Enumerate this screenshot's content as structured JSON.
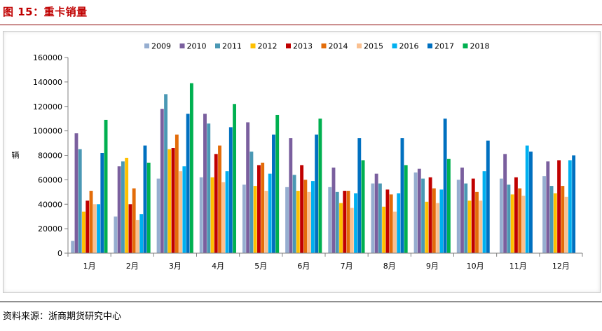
{
  "header": {
    "title": "图 15：重卡销量"
  },
  "footer": {
    "source": "资料来源：浙商期货研究中心"
  },
  "chart_data": {
    "type": "bar",
    "ylabel": "辆",
    "ylim": [
      0,
      160000
    ],
    "yticks": [
      "0",
      "20000",
      "40000",
      "60000",
      "80000",
      "100000",
      "120000",
      "140000",
      "160000"
    ],
    "legend": "top",
    "grid": false,
    "categories": [
      "1月",
      "2月",
      "3月",
      "4月",
      "5月",
      "6月",
      "7月",
      "8月",
      "9月",
      "10月",
      "11月",
      "12月"
    ],
    "series": [
      {
        "name": "2009",
        "color": "#96aed0",
        "values": [
          10000,
          30000,
          61000,
          62000,
          56000,
          54000,
          54000,
          57000,
          66000,
          60000,
          61000,
          63000
        ]
      },
      {
        "name": "2010",
        "color": "#7a5f9e",
        "values": [
          98000,
          71000,
          118000,
          114000,
          107000,
          94000,
          70000,
          65000,
          69000,
          70000,
          81000,
          75000
        ]
      },
      {
        "name": "2011",
        "color": "#4a98b4",
        "values": [
          85000,
          75000,
          130000,
          106000,
          83000,
          64000,
          50000,
          57000,
          61000,
          57000,
          56000,
          55000
        ]
      },
      {
        "name": "2012",
        "color": "#ffc000",
        "values": [
          34000,
          78000,
          85000,
          62000,
          55000,
          51000,
          41000,
          38000,
          42000,
          43000,
          48000,
          49000
        ]
      },
      {
        "name": "2013",
        "color": "#c00000",
        "values": [
          43000,
          40000,
          86000,
          81000,
          72000,
          72000,
          51000,
          52000,
          62000,
          61000,
          62000,
          76000
        ]
      },
      {
        "name": "2014",
        "color": "#e36c09",
        "values": [
          51000,
          53000,
          97000,
          88000,
          74000,
          60000,
          51000,
          48000,
          53000,
          50000,
          53000,
          55000
        ]
      },
      {
        "name": "2015",
        "color": "#fac090",
        "values": [
          40000,
          27000,
          67000,
          58000,
          51000,
          50000,
          37000,
          34000,
          41000,
          43000,
          47000,
          46000
        ]
      },
      {
        "name": "2016",
        "color": "#00b0f0",
        "values": [
          40000,
          32000,
          71000,
          67000,
          65000,
          59000,
          49000,
          49000,
          52000,
          67000,
          88000,
          76000
        ]
      },
      {
        "name": "2017",
        "color": "#0070c0",
        "values": [
          82000,
          88000,
          114000,
          103000,
          97000,
          97000,
          94000,
          94000,
          110000,
          92000,
          83000,
          80000
        ]
      },
      {
        "name": "2018",
        "color": "#00b050",
        "values": [
          109000,
          74000,
          139000,
          122000,
          113000,
          110000,
          76000,
          72000,
          77000,
          null,
          null,
          null
        ]
      }
    ]
  }
}
